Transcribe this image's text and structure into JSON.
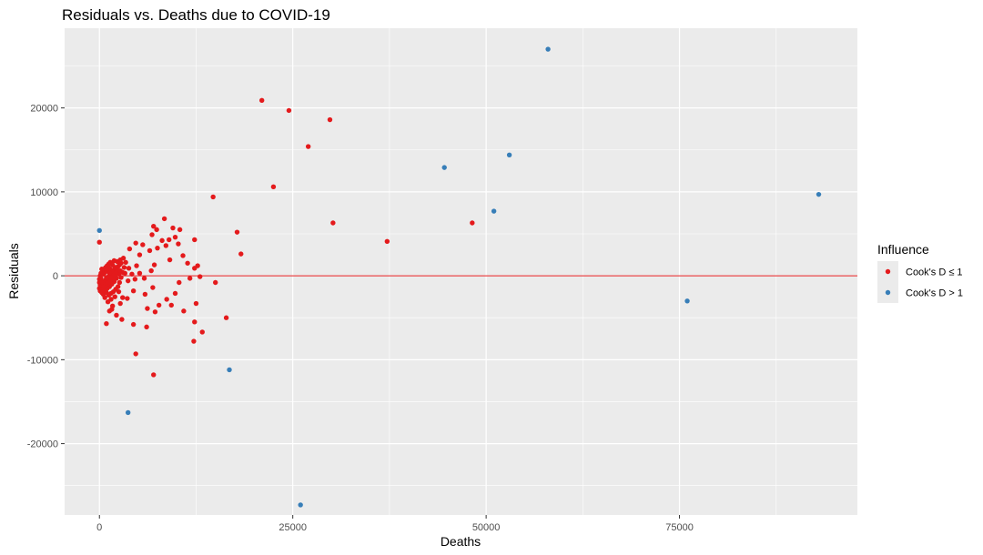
{
  "chart_data": {
    "type": "scatter",
    "title": "Residuals vs. Deaths due to COVID-19",
    "xlabel": "Deaths",
    "ylabel": "Residuals",
    "xlim": [
      -4500,
      98000
    ],
    "ylim": [
      -28500,
      29500
    ],
    "x_ticks": [
      0,
      25000,
      50000,
      75000
    ],
    "x_tick_labels": [
      "0",
      "25000",
      "50000",
      "75000"
    ],
    "y_ticks": [
      -20000,
      -10000,
      0,
      10000,
      20000
    ],
    "y_tick_labels": [
      "-20000",
      "-10000",
      "0",
      "10000",
      "20000"
    ],
    "grid": true,
    "panel_background": "#ebebeb",
    "reference_line": {
      "y": 0,
      "color": "#e41a1c"
    },
    "legend": {
      "title": "Influence",
      "position": "right",
      "entries": [
        {
          "label": "Cook's D ≤ 1",
          "color": "#e41a1c"
        },
        {
          "label": "Cook's D > 1",
          "color": "#377eb8"
        }
      ]
    },
    "series": [
      {
        "name": "Cook's D ≤ 1",
        "color": "#e41a1c",
        "points": [
          [
            21000,
            20900
          ],
          [
            24500,
            19700
          ],
          [
            29800,
            18600
          ],
          [
            27000,
            15400
          ],
          [
            22500,
            10600
          ],
          [
            14700,
            9400
          ],
          [
            30200,
            6300
          ],
          [
            48200,
            6300
          ],
          [
            37200,
            4100
          ],
          [
            17800,
            5200
          ],
          [
            18300,
            2600
          ],
          [
            15000,
            -800
          ],
          [
            16400,
            -5000
          ],
          [
            13300,
            -6700
          ],
          [
            12200,
            -7800
          ],
          [
            12300,
            -5500
          ],
          [
            4700,
            -9300
          ],
          [
            7000,
            -11800
          ],
          [
            0,
            4000
          ],
          [
            8400,
            6800
          ],
          [
            9500,
            5700
          ],
          [
            10400,
            5500
          ],
          [
            7000,
            5900
          ],
          [
            7400,
            5500
          ],
          [
            12300,
            4300
          ],
          [
            9800,
            4600
          ],
          [
            9000,
            4300
          ],
          [
            6800,
            4900
          ],
          [
            8100,
            4200
          ],
          [
            10200,
            3800
          ],
          [
            4700,
            3900
          ],
          [
            5600,
            3700
          ],
          [
            3900,
            3200
          ],
          [
            6500,
            3000
          ],
          [
            7500,
            3300
          ],
          [
            8600,
            3600
          ],
          [
            10800,
            2400
          ],
          [
            5200,
            2500
          ],
          [
            9100,
            1900
          ],
          [
            11400,
            1500
          ],
          [
            12700,
            1200
          ],
          [
            12300,
            900
          ],
          [
            13000,
            -100
          ],
          [
            11700,
            -300
          ],
          [
            10300,
            -800
          ],
          [
            9800,
            -2100
          ],
          [
            8700,
            -2800
          ],
          [
            9300,
            -3500
          ],
          [
            12500,
            -3300
          ],
          [
            10900,
            -4200
          ],
          [
            7700,
            -3500
          ],
          [
            7200,
            -4300
          ],
          [
            6200,
            -3900
          ],
          [
            5900,
            -2200
          ],
          [
            6900,
            -1400
          ],
          [
            5800,
            -300
          ],
          [
            6700,
            600
          ],
          [
            7100,
            1300
          ],
          [
            4800,
            1200
          ],
          [
            3700,
            -600
          ],
          [
            4400,
            -1800
          ],
          [
            3600,
            -2700
          ],
          [
            2700,
            -3300
          ],
          [
            4400,
            -5800
          ],
          [
            6100,
            -6100
          ],
          [
            1300,
            -4200
          ],
          [
            2200,
            -4700
          ],
          [
            2900,
            -5200
          ],
          [
            900,
            -5700
          ],
          [
            1700,
            -3600
          ],
          [
            1600,
            -4000
          ],
          [
            3000,
            -2600
          ],
          [
            2500,
            -1900
          ],
          [
            2000,
            -2500
          ],
          [
            1500,
            -2800
          ],
          [
            1100,
            -3100
          ],
          [
            700,
            -2600
          ],
          [
            500,
            -2200
          ],
          [
            300,
            -2000
          ],
          [
            100,
            -1800
          ],
          [
            0,
            -1500
          ],
          [
            200,
            -1200
          ],
          [
            400,
            -900
          ],
          [
            600,
            -700
          ],
          [
            800,
            -500
          ],
          [
            1000,
            -300
          ],
          [
            1200,
            -100
          ],
          [
            1400,
            100
          ],
          [
            1600,
            300
          ],
          [
            1800,
            500
          ],
          [
            2000,
            700
          ],
          [
            2200,
            900
          ],
          [
            2400,
            1100
          ],
          [
            2600,
            1300
          ],
          [
            2800,
            1500
          ],
          [
            1900,
            1800
          ],
          [
            2300,
            1700
          ],
          [
            2700,
            1900
          ],
          [
            3100,
            2100
          ],
          [
            3400,
            1600
          ],
          [
            3200,
            1000
          ],
          [
            3000,
            400
          ],
          [
            2800,
            -200
          ],
          [
            2600,
            -800
          ],
          [
            2400,
            -1300
          ],
          [
            2100,
            -1600
          ],
          [
            1800,
            -1900
          ],
          [
            1500,
            -2100
          ],
          [
            1200,
            -2300
          ],
          [
            900,
            -2000
          ],
          [
            600,
            -1700
          ],
          [
            300,
            -1400
          ],
          [
            100,
            -1100
          ],
          [
            0,
            -800
          ],
          [
            0,
            -400
          ],
          [
            100,
            0
          ],
          [
            200,
            300
          ],
          [
            400,
            500
          ],
          [
            600,
            800
          ],
          [
            800,
            1000
          ],
          [
            1000,
            1200
          ],
          [
            1200,
            1400
          ],
          [
            1400,
            1600
          ],
          [
            1700,
            1300
          ],
          [
            2000,
            1000
          ],
          [
            2300,
            600
          ],
          [
            2500,
            200
          ],
          [
            2200,
            -300
          ],
          [
            1900,
            -700
          ],
          [
            1600,
            -1000
          ],
          [
            1300,
            -1300
          ],
          [
            1000,
            -1500
          ],
          [
            700,
            -1200
          ],
          [
            500,
            -900
          ],
          [
            300,
            -600
          ],
          [
            200,
            -300
          ],
          [
            500,
            200
          ],
          [
            700,
            400
          ],
          [
            900,
            600
          ],
          [
            1100,
            800
          ],
          [
            1300,
            900
          ],
          [
            1500,
            700
          ],
          [
            1700,
            400
          ],
          [
            1900,
            100
          ],
          [
            1700,
            -400
          ],
          [
            1400,
            -600
          ],
          [
            1100,
            -900
          ],
          [
            800,
            -1100
          ],
          [
            500,
            -1300
          ],
          [
            300,
            800
          ],
          [
            900,
            -200
          ],
          [
            1300,
            300
          ],
          [
            1600,
            -200
          ],
          [
            2100,
            300
          ],
          [
            2700,
            600
          ],
          [
            3300,
            300
          ],
          [
            3800,
            900
          ],
          [
            4200,
            200
          ],
          [
            4600,
            -400
          ],
          [
            5200,
            300
          ]
        ]
      },
      {
        "name": "Cook's D > 1",
        "color": "#377eb8",
        "points": [
          [
            58000,
            27000
          ],
          [
            53000,
            14400
          ],
          [
            44600,
            12900
          ],
          [
            51000,
            7700
          ],
          [
            93000,
            9700
          ],
          [
            76000,
            -3000
          ],
          [
            0,
            5400
          ],
          [
            16800,
            -11200
          ],
          [
            3700,
            -16300
          ],
          [
            26000,
            -27300
          ]
        ]
      }
    ]
  }
}
